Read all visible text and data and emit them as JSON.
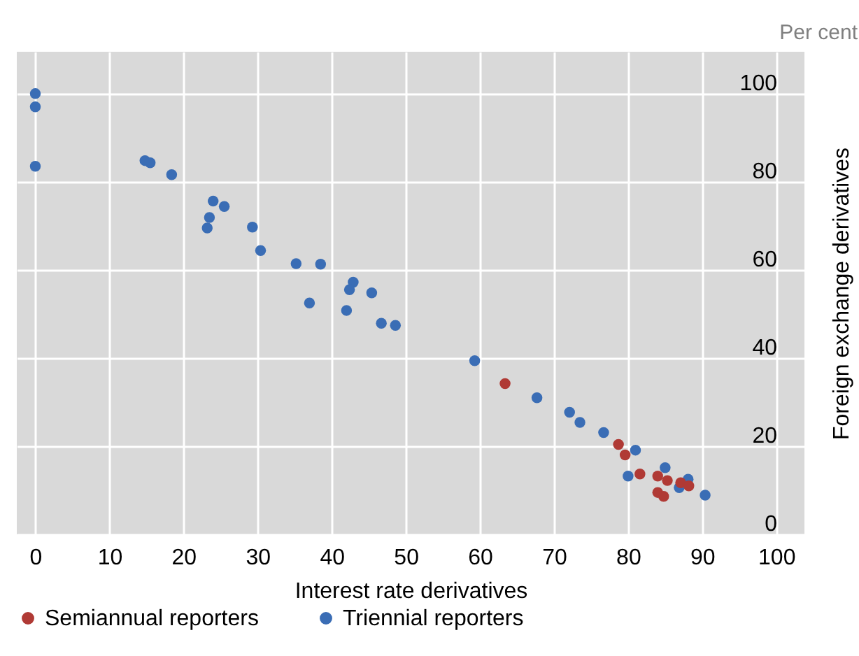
{
  "chart_data": {
    "type": "scatter",
    "xlabel": "Interest rate derivatives",
    "ylabel": "Foreign exchange derivatives",
    "annotations": [
      "Per cent"
    ],
    "xlim": [
      -2.5,
      103.8
    ],
    "ylim": [
      0,
      109.5
    ],
    "xticks": [
      0,
      10,
      20,
      30,
      40,
      50,
      60,
      70,
      80,
      90,
      100
    ],
    "yticks": [
      0,
      20,
      40,
      60,
      80,
      100
    ],
    "grid": true,
    "legend": "bottom",
    "marker": "circle",
    "series": [
      {
        "name": "Semiannual reporters",
        "color": "#b03a35",
        "x": [
          63.4,
          78.7,
          79.6,
          81.6,
          84.0,
          85.3,
          84.0,
          84.8,
          87.1,
          88.2
        ],
        "values": [
          34.2,
          20.4,
          18.0,
          13.7,
          13.2,
          12.2,
          9.5,
          8.6,
          11.7,
          11.0
        ]
      },
      {
        "name": "Triennial reporters",
        "color": "#3a6db5",
        "x": [
          0,
          0,
          0,
          14.8,
          15.5,
          18.4,
          24.0,
          25.5,
          23.5,
          23.2,
          29.3,
          30.4,
          35.2,
          38.5,
          37.0,
          42.9,
          42.4,
          45.4,
          42.0,
          46.7,
          48.6,
          59.3,
          67.7,
          72.1,
          73.5,
          76.7,
          81.0,
          80.0,
          85.0,
          86.9,
          88.1,
          90.4
        ],
        "values": [
          100,
          97,
          83.5,
          84.8,
          84.3,
          81.6,
          75.6,
          74.4,
          71.9,
          69.5,
          69.7,
          64.4,
          61.4,
          61.3,
          52.5,
          57.2,
          55.5,
          54.8,
          50.8,
          47.9,
          47.4,
          39.4,
          31.0,
          27.7,
          25.4,
          23.1,
          19.1,
          13.2,
          15.1,
          10.6,
          12.5,
          8.9
        ]
      }
    ]
  }
}
